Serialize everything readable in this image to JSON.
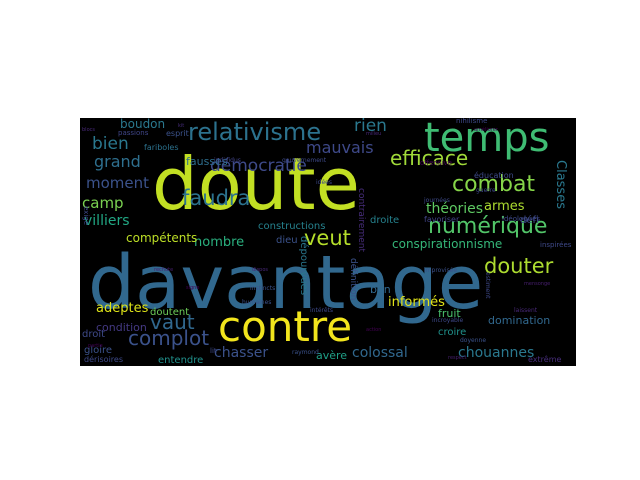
{
  "word_cloud": {
    "background": "#000000",
    "words": [
      {
        "id": "davantage",
        "text": "davantage",
        "color": "#31688e"
      },
      {
        "id": "doute",
        "text": "doute",
        "color": "#c2df23"
      },
      {
        "id": "contre",
        "text": "contre",
        "color": "#f2e51d"
      },
      {
        "id": "temps",
        "text": "temps",
        "color": "#3fbc73"
      },
      {
        "id": "relativisme",
        "text": "relativisme",
        "color": "#2c728e"
      },
      {
        "id": "numerique",
        "text": "numérique",
        "color": "#52c569"
      },
      {
        "id": "combat",
        "text": "combat",
        "color": "#86d549"
      },
      {
        "id": "douter",
        "text": "douter",
        "color": "#addc30"
      },
      {
        "id": "complot",
        "text": "complot",
        "color": "#3b528b"
      },
      {
        "id": "vaut",
        "text": "vaut",
        "color": "#31688e"
      },
      {
        "id": "faudra",
        "text": "faudra",
        "color": "#2c728e"
      },
      {
        "id": "veut",
        "text": "veut",
        "color": "#b5de2b"
      },
      {
        "id": "efficace",
        "text": "efficace",
        "color": "#a0da39"
      },
      {
        "id": "democratie",
        "text": "démocratie",
        "color": "#3e4a89"
      },
      {
        "id": "mauvais",
        "text": "mauvais",
        "color": "#3e4989"
      },
      {
        "id": "bien",
        "text": "bien",
        "color": "#2a788e"
      },
      {
        "id": "grand",
        "text": "grand",
        "color": "#2e6f8e"
      },
      {
        "id": "moment",
        "text": "moment",
        "color": "#3b528b"
      },
      {
        "id": "camp",
        "text": "camp",
        "color": "#7ad151"
      },
      {
        "id": "villiers",
        "text": "villiers",
        "color": "#22a884"
      },
      {
        "id": "rien",
        "text": "rien",
        "color": "#2a788e"
      },
      {
        "id": "theories",
        "text": "théories",
        "color": "#5ec962"
      },
      {
        "id": "armes",
        "text": "armes",
        "color": "#addc30"
      },
      {
        "id": "classes",
        "text": "Classes",
        "color": "#2a788e"
      },
      {
        "id": "nombre",
        "text": "nombre",
        "color": "#2ab07f"
      },
      {
        "id": "competents",
        "text": "compétents",
        "color": "#bddf26"
      },
      {
        "id": "adeptes",
        "text": "adeptes",
        "color": "#dde318"
      },
      {
        "id": "chasser",
        "text": "chasser",
        "color": "#3b528b"
      },
      {
        "id": "chouannes",
        "text": "chouannes",
        "color": "#2a788e"
      },
      {
        "id": "colossal",
        "text": "colossal",
        "color": "#31688e"
      },
      {
        "id": "informes",
        "text": "informés",
        "color": "#e2e418"
      },
      {
        "id": "boudon",
        "text": "boudon",
        "color": "#2a788e"
      },
      {
        "id": "fausses",
        "text": "fausses",
        "color": "#2e6e8e"
      },
      {
        "id": "conspirationnisme",
        "text": "conspirationnisme",
        "color": "#35b779"
      },
      {
        "id": "condition",
        "text": "condition",
        "color": "#443983"
      },
      {
        "id": "doutent",
        "text": "doutent",
        "color": "#6ece58"
      },
      {
        "id": "avere",
        "text": "avère",
        "color": "#1fa188"
      },
      {
        "id": "domination",
        "text": "domination",
        "color": "#31688e"
      },
      {
        "id": "fruit",
        "text": "fruit",
        "color": "#4ac16d"
      },
      {
        "id": "bon",
        "text": "bon",
        "color": "#31688e"
      },
      {
        "id": "croire",
        "text": "croire",
        "color": "#20928c"
      },
      {
        "id": "gloire",
        "text": "gloire",
        "color": "#3b528b"
      },
      {
        "id": "droit",
        "text": "droit",
        "color": "#3e4a89"
      },
      {
        "id": "droite",
        "text": "droite",
        "color": "#26828e"
      },
      {
        "id": "entendre",
        "text": "entendre",
        "color": "#21918c"
      },
      {
        "id": "derisoires",
        "text": "dérisoires",
        "color": "#3e4a89"
      },
      {
        "id": "extreme",
        "text": "extrême",
        "color": "#472d7b"
      },
      {
        "id": "constructions",
        "text": "constructions",
        "color": "#26828e"
      },
      {
        "id": "dieu",
        "text": "dieu",
        "color": "#3b528b"
      },
      {
        "id": "education",
        "text": "éducation",
        "color": "#3e4a89"
      },
      {
        "id": "defi",
        "text": "défi",
        "color": "#3e4a89"
      },
      {
        "id": "fariboles",
        "text": "fariboles",
        "color": "#2c728e"
      },
      {
        "id": "esprit",
        "text": "esprit",
        "color": "#3b528b"
      },
      {
        "id": "passions",
        "text": "passions",
        "color": "#404688"
      },
      {
        "id": "depourvues",
        "text": "dépourvues",
        "color": "#2a788e"
      },
      {
        "id": "contrairement",
        "text": "contrairement",
        "color": "#472d7b"
      },
      {
        "id": "definition",
        "text": "définition",
        "color": "#3b528b"
      },
      {
        "id": "ideologues",
        "text": "idéologues",
        "color": "#3e4989"
      },
      {
        "id": "inspirees",
        "text": "inspirées",
        "color": "#3e4989"
      },
      {
        "id": "favoriser",
        "text": "favoriser",
        "color": "#414487"
      },
      {
        "id": "guerre",
        "text": "guerre",
        "color": "#3e4989"
      },
      {
        "id": "nihilisme",
        "text": "nihilisme",
        "color": "#3e4989"
      },
      {
        "id": "offensive",
        "text": "offensive",
        "color": "#440154"
      },
      {
        "id": "gouvernement",
        "text": "gouvernement",
        "color": "#3e4a89"
      },
      {
        "id": "individus",
        "text": "individus",
        "color": "#414487"
      },
      {
        "id": "idees",
        "text": "idées",
        "color": "#3e4a89"
      },
      {
        "id": "journees",
        "text": "journées",
        "color": "#3e4a89"
      },
      {
        "id": "instincts",
        "text": "instincts",
        "color": "#3b528b"
      },
      {
        "id": "humaines",
        "text": "humaines",
        "color": "#3b528b"
      },
      {
        "id": "ameliorer",
        "text": "améliorer",
        "color": "#440154"
      },
      {
        "id": "improvisee",
        "text": "improvisée",
        "color": "#3b528b"
      },
      {
        "id": "estiment",
        "text": "estiment",
        "color": "#3e4989"
      },
      {
        "id": "incroyable",
        "text": "incroyable",
        "color": "#3e4989"
      },
      {
        "id": "laissent",
        "text": "laissent",
        "color": "#482878"
      },
      {
        "id": "doyenne",
        "text": "doyenne",
        "color": "#3b528b"
      },
      {
        "id": "raymond",
        "text": "raymond",
        "color": "#3b528b"
      },
      {
        "id": "interets",
        "text": "intérêts",
        "color": "#3e4989"
      },
      {
        "id": "milieu",
        "text": "milieu",
        "color": "#482878"
      },
      {
        "id": "blocs",
        "text": "blocs",
        "color": "#482878"
      },
      {
        "id": "kit",
        "text": "kit",
        "color": "#472d7b"
      },
      {
        "id": "mensonge",
        "text": "mensonge",
        "color": "#481f70"
      },
      {
        "id": "exige",
        "text": "exige",
        "color": "#3e4989"
      },
      {
        "id": "rechute",
        "text": "rechute",
        "color": "#481f70"
      },
      {
        "id": "partie",
        "text": "partie",
        "color": "#440154"
      },
      {
        "id": "lit",
        "text": "lit",
        "color": "#3e4989"
      },
      {
        "id": "signe",
        "text": "signe",
        "color": "#440154"
      },
      {
        "id": "respect",
        "text": "respect",
        "color": "#481f70"
      },
      {
        "id": "dispos",
        "text": "dispos",
        "color": "#482878"
      },
      {
        "id": "action",
        "text": "action",
        "color": "#440154"
      }
    ]
  }
}
